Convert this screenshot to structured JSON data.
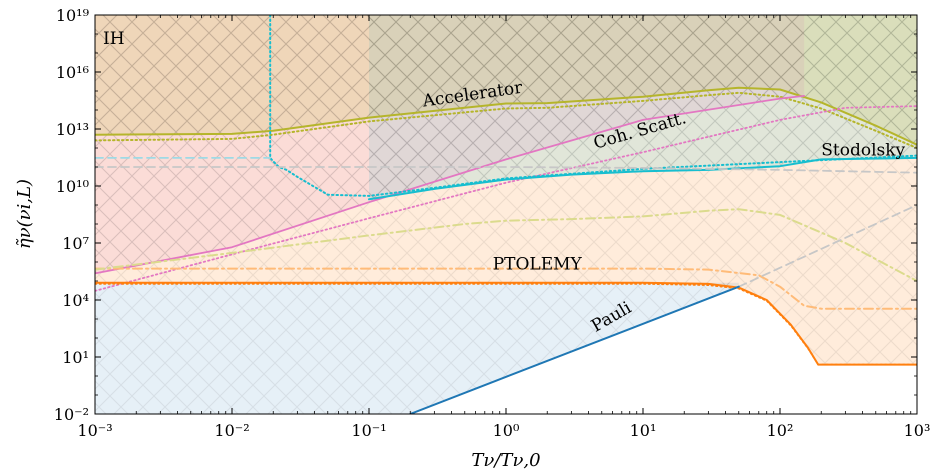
{
  "chart_data": {
    "type": "line",
    "x_scale": "log",
    "y_scale": "log",
    "xlim": [
      0.001,
      1000
    ],
    "ylim": [
      0.01,
      1e+19
    ],
    "x_ticks": [
      {
        "value": 0.001,
        "label": "10⁻³"
      },
      {
        "value": 0.01,
        "label": "10⁻²"
      },
      {
        "value": 0.1,
        "label": "10⁻¹"
      },
      {
        "value": 1,
        "label": "10⁰"
      },
      {
        "value": 10,
        "label": "10¹"
      },
      {
        "value": 100,
        "label": "10²"
      },
      {
        "value": 1000,
        "label": "10³"
      }
    ],
    "y_ticks": [
      {
        "value": 0.01,
        "label": "10⁻²"
      },
      {
        "value": 10,
        "label": "10¹"
      },
      {
        "value": 10000,
        "label": "10⁴"
      },
      {
        "value": 10000000.0,
        "label": "10⁷"
      },
      {
        "value": 10000000000.0,
        "label": "10¹⁰"
      },
      {
        "value": 10000000000000.0,
        "label": "10¹³"
      },
      {
        "value": 1e+16,
        "label": "10¹⁶"
      },
      {
        "value": 1e+19,
        "label": "10¹⁹"
      }
    ],
    "xlabel": "Tν/Tν,0",
    "ylabel": "η̃ν(νi,L)",
    "corner_label": "IH",
    "colors": {
      "accelerator": "#b5b52b",
      "coh_scatt": "#e377c2",
      "stodolsky": "#17becf",
      "ptolemy": "#ff7f0e",
      "pauli": "#1f77b4",
      "gray": "#c7c7c7",
      "olive_light": "#dbdb8d",
      "peach": "#ffbb78",
      "cyan_light": "#9edae5"
    },
    "series": [
      {
        "id": "accelerator",
        "name": "Accelerator",
        "style": "solid",
        "x": [
          0.001,
          0.01,
          0.02,
          0.1,
          1,
          2,
          10,
          30,
          50,
          100,
          200,
          500,
          1000
        ],
        "y": [
          5000000000000.0,
          5500000000000.0,
          8000000000000.0,
          40000000000000.0,
          220000000000000.0,
          230000000000000.0,
          500000000000000.0,
          1100000000000000.0,
          1500000000000000.0,
          1200000000000000.0,
          250000000000000.0,
          15000000000000.0,
          1500000000000.0
        ]
      },
      {
        "id": "accelerator-dotted",
        "style": "dotted",
        "x": [
          0.001,
          0.01,
          0.02,
          0.1,
          1,
          2,
          10,
          30,
          50,
          100,
          200,
          500,
          1000
        ],
        "y": [
          2500000000000.0,
          3000000000000.0,
          5000000000000.0,
          25000000000000.0,
          120000000000000.0,
          130000000000000.0,
          300000000000000.0,
          600000000000000.0,
          800000000000000.0,
          500000000000000.0,
          120000000000000.0,
          8000000000000.0,
          1000000000000.0
        ]
      },
      {
        "id": "coh-scatt",
        "name": "Coh. Scatt.",
        "style": "solid",
        "x": [
          0.001,
          0.01,
          0.1,
          1,
          10,
          100,
          150
        ],
        "y": [
          250000.0,
          6000000.0,
          1400000000.0,
          250000000000.0,
          30000000000000.0,
          400000000000000.0,
          550000000000000.0
        ]
      },
      {
        "id": "coh-scatt-dotted",
        "style": "dotted",
        "x": [
          0.001,
          0.01,
          0.1,
          1,
          10,
          100,
          300,
          1000
        ],
        "y": [
          30000.0,
          2500000.0,
          200000000.0,
          15000000000.0,
          600000000000.0,
          30000000000000.0,
          130000000000000.0,
          160000000000000.0
        ]
      },
      {
        "id": "stodolsky",
        "name": "Stodolsky",
        "style": "solid",
        "x": [
          0.1,
          0.3,
          1,
          3,
          10,
          30,
          100,
          200,
          1000
        ],
        "y": [
          2000000000.0,
          7000000000.0,
          22000000000.0,
          40000000000.0,
          60000000000.0,
          70000000000.0,
          110000000000.0,
          250000000000.0,
          300000000000.0
        ]
      },
      {
        "id": "stodolsky-dotted",
        "style": "dotted",
        "x": [
          0.019,
          0.019,
          0.02,
          0.022,
          0.025,
          0.03,
          0.05,
          0.1,
          0.3,
          1,
          10,
          100,
          1000
        ],
        "y": [
          1e+19,
          300000000000.0,
          200000000000.0,
          100000000000.0,
          70000000000.0,
          30000000000.0,
          3500000000.0,
          3000000000.0,
          8000000000.0,
          25000000000.0,
          80000000000.0,
          180000000000.0,
          400000000000.0
        ]
      },
      {
        "id": "ptolemy",
        "name": "PTOLEMY",
        "style": "solid",
        "x": [
          0.001,
          0.1,
          1,
          10,
          30,
          50,
          80,
          120,
          160,
          190,
          1000
        ],
        "y": [
          80000,
          80000,
          80000,
          80000,
          70000,
          45000,
          10000,
          500,
          30,
          4,
          4
        ]
      },
      {
        "id": "ptolemy-dotted",
        "style": "dotted",
        "x": [
          0.001,
          0.1,
          1,
          10,
          30,
          50,
          80,
          120,
          160,
          190,
          1000
        ],
        "y": [
          70000,
          70000,
          70000,
          70000,
          60000,
          40000,
          9000,
          450,
          28,
          4,
          4
        ]
      },
      {
        "id": "ptolemy-dashdot",
        "style": "dashdot",
        "x": [
          0.001,
          0.1,
          1,
          10,
          30,
          70,
          100,
          150,
          200,
          1000
        ],
        "y": [
          450000,
          450000,
          450000,
          450000,
          400000,
          200000,
          50000,
          5000,
          3500,
          3500
        ]
      },
      {
        "id": "olive-dashdot",
        "style": "dashdot",
        "x": [
          0.001,
          0.01,
          0.1,
          0.5,
          1,
          3,
          10,
          30,
          50,
          100,
          300,
          1000
        ],
        "y": [
          400000,
          3000000.0,
          25000000.0,
          100000000.0,
          150000000.0,
          180000000.0,
          250000000.0,
          500000000.0,
          600000000.0,
          300000000.0,
          10000000.0,
          100000.0
        ]
      },
      {
        "id": "gray-dashed-top",
        "style": "dashed",
        "x": [
          0.001,
          1,
          10,
          100,
          1000
        ],
        "y": [
          100000000000.0,
          100000000000.0,
          90000000000.0,
          70000000000.0,
          50000000000.0
        ]
      },
      {
        "id": "cyan-dashed",
        "style": "dashed",
        "x": [
          0.001,
          0.019
        ],
        "y": [
          300000000000.0,
          300000000000.0
        ]
      },
      {
        "id": "gray-dashed-pauli",
        "style": "dashed",
        "x": [
          50,
          1000
        ],
        "y": [
          50000,
          1000000000.0
        ]
      },
      {
        "id": "pauli",
        "name": "Pauli",
        "style": "solid",
        "x": [
          0.2,
          50
        ],
        "y": [
          0.01,
          50000
        ]
      }
    ],
    "labels": [
      {
        "text": "Accelerator",
        "x": 0.25,
        "y": 150000000000000.0,
        "angle": -8
      },
      {
        "text": "Coh. Scatt.",
        "x": 4.5,
        "y": 900000000000.0,
        "angle": -16
      },
      {
        "text": "Stodolsky",
        "x": 200,
        "y": 400000000000.0,
        "angle": 0
      },
      {
        "text": "PTOLEMY",
        "x": 0.8,
        "y": 400000.0,
        "angle": 0
      },
      {
        "text": "Pauli",
        "x": 4.5,
        "y": 200,
        "angle": -30
      }
    ]
  }
}
